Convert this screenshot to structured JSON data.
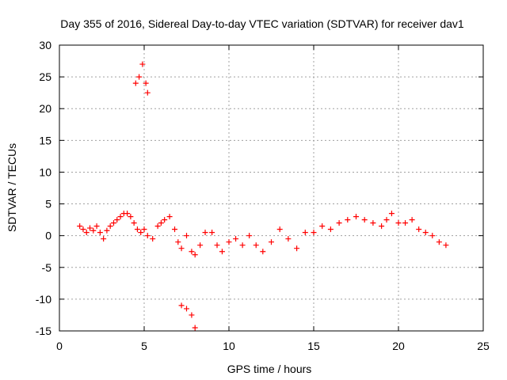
{
  "chart_data": {
    "type": "scatter",
    "title": "Day 355 of 2016, Sidereal Day-to-day VTEC variation (SDTVAR) for receiver dav1",
    "xlabel": "GPS time / hours",
    "ylabel": "SDTVAR / TECUs",
    "xlim": [
      0,
      25
    ],
    "ylim": [
      -15,
      30
    ],
    "xticks": [
      0,
      5,
      10,
      15,
      20,
      25
    ],
    "yticks": [
      -15,
      -10,
      -5,
      0,
      5,
      10,
      15,
      20,
      25,
      30
    ],
    "grid": true,
    "marker": "+",
    "color": "#ff0000",
    "series": [
      {
        "name": "dav1",
        "x": [
          1.2,
          1.4,
          1.6,
          1.8,
          2.0,
          2.2,
          2.4,
          2.6,
          2.8,
          3.0,
          3.2,
          3.4,
          3.6,
          3.8,
          4.0,
          4.2,
          4.4,
          4.6,
          4.8,
          5.0,
          5.2,
          5.5,
          5.8,
          6.0,
          6.2,
          6.5,
          6.8,
          7.0,
          7.2,
          7.5,
          7.8,
          8.0,
          8.3,
          8.6,
          9.0,
          9.3,
          9.6,
          10.0,
          10.4,
          10.8,
          11.2,
          11.6,
          12.0,
          12.5,
          13.0,
          13.5,
          14.0,
          14.5,
          15.0,
          15.5,
          16.0,
          16.5,
          17.0,
          17.5,
          18.0,
          18.5,
          19.0,
          19.3,
          19.6,
          20.0,
          20.4,
          20.8,
          21.2,
          21.6,
          22.0,
          22.4,
          22.8,
          4.5,
          4.7,
          4.9,
          5.1,
          5.2,
          7.2,
          7.5,
          7.8,
          8.0
        ],
        "y": [
          1.5,
          1.0,
          0.5,
          1.2,
          0.8,
          1.5,
          0.5,
          -0.5,
          0.8,
          1.5,
          2.0,
          2.5,
          3.0,
          3.5,
          3.5,
          3.0,
          2.0,
          1.0,
          0.5,
          1.0,
          0.0,
          -0.5,
          1.5,
          2.0,
          2.5,
          3.0,
          1.0,
          -1.0,
          -2.0,
          0.0,
          -2.5,
          -3.0,
          -1.5,
          0.5,
          0.5,
          -1.5,
          -2.5,
          -1.0,
          -0.5,
          -1.5,
          0.0,
          -1.5,
          -2.5,
          -1.0,
          1.0,
          -0.5,
          -2.0,
          0.5,
          0.5,
          1.5,
          1.0,
          2.0,
          2.5,
          3.0,
          2.5,
          2.0,
          1.5,
          2.5,
          3.5,
          2.0,
          2.0,
          2.5,
          1.0,
          0.5,
          0.0,
          -1.0,
          -1.5,
          24.0,
          25.0,
          27.0,
          24.0,
          22.5,
          -11.0,
          -11.5,
          -12.5,
          -14.5
        ]
      }
    ]
  }
}
